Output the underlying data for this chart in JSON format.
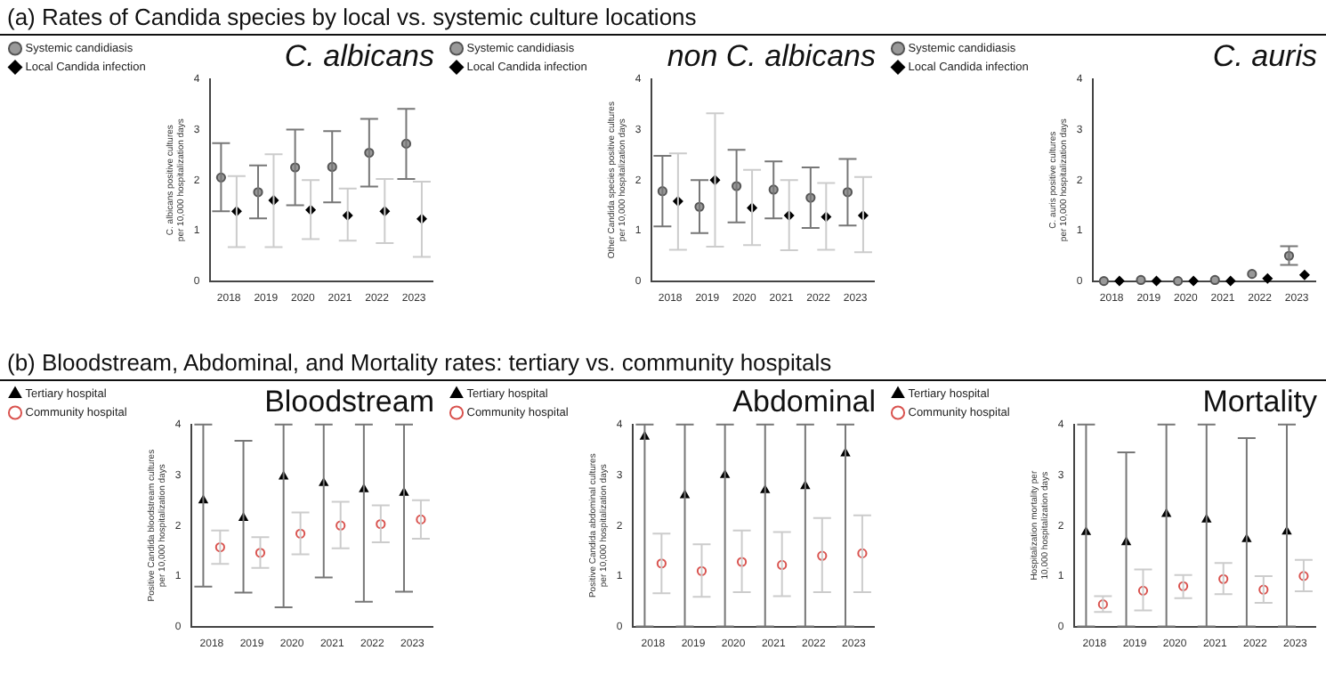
{
  "chart_data": [
    {
      "type": "scatter",
      "title": "C. albicans",
      "ylabel": "C. albicans positive cultures per 10,000 hospitalization days",
      "annotations": [
        "(a) Rates of Candida species by local vs. systemic culture locations"
      ],
      "categories": [
        "2018",
        "2019",
        "2020",
        "2021",
        "2022",
        "2023"
      ],
      "ylim": [
        0,
        4
      ],
      "yticks": [
        0,
        1,
        2,
        3,
        4
      ],
      "legend": "top left",
      "series": [
        {
          "name": "Systemic candidiasis",
          "color": "#999999",
          "marker": "circle",
          "values": [
            2.05,
            1.76,
            2.25,
            2.26,
            2.54,
            2.72
          ],
          "errors": [
            [
              1.38,
              2.73
            ],
            [
              1.24,
              2.29
            ],
            [
              1.5,
              3.0
            ],
            [
              1.56,
              2.97
            ],
            [
              1.87,
              3.21
            ],
            [
              2.02,
              3.41
            ]
          ]
        },
        {
          "name": "Local Candida infection",
          "color": "#000000",
          "marker": "diamond",
          "values": [
            1.38,
            1.6,
            1.41,
            1.3,
            1.38,
            1.23
          ],
          "errors": [
            [
              0.67,
              2.08
            ],
            [
              0.67,
              2.51
            ],
            [
              0.83,
              2.0
            ],
            [
              0.8,
              1.83
            ],
            [
              0.75,
              2.02
            ],
            [
              0.48,
              1.97
            ]
          ]
        }
      ]
    },
    {
      "type": "scatter",
      "title": "non C. albicans",
      "ylabel": "Other Candida species positive cultures per 10,000 hospitalization days",
      "categories": [
        "2018",
        "2019",
        "2020",
        "2021",
        "2022",
        "2023"
      ],
      "ylim": [
        0,
        4
      ],
      "yticks": [
        0,
        1,
        2,
        3,
        4
      ],
      "legend": "top left",
      "series": [
        {
          "name": "Systemic candidiasis",
          "color": "#999999",
          "marker": "circle",
          "values": [
            1.78,
            1.47,
            1.88,
            1.81,
            1.65,
            1.76
          ],
          "errors": [
            [
              1.08,
              2.48
            ],
            [
              0.95,
              2.0
            ],
            [
              1.16,
              2.6
            ],
            [
              1.24,
              2.37
            ],
            [
              1.05,
              2.25
            ],
            [
              1.1,
              2.42
            ]
          ]
        },
        {
          "name": "Local Candida infection",
          "color": "#000000",
          "marker": "diamond",
          "values": [
            1.58,
            2.0,
            1.45,
            1.3,
            1.27,
            1.3
          ],
          "errors": [
            [
              0.62,
              2.53
            ],
            [
              0.68,
              3.32
            ],
            [
              0.71,
              2.2
            ],
            [
              0.61,
              2.0
            ],
            [
              0.62,
              1.94
            ],
            [
              0.57,
              2.06
            ]
          ]
        }
      ]
    },
    {
      "type": "scatter",
      "title": "C. auris",
      "ylabel": "C. auris positive cultures per 10,000 hospitalization days",
      "categories": [
        "2018",
        "2019",
        "2020",
        "2021",
        "2022",
        "2023"
      ],
      "ylim": [
        0,
        4
      ],
      "yticks": [
        0,
        1,
        2,
        3,
        4
      ],
      "legend": "top left",
      "series": [
        {
          "name": "Systemic candidiasis",
          "color": "#999999",
          "marker": "circle",
          "values": [
            0,
            0.02,
            0,
            0.02,
            0.14,
            0.5
          ],
          "errors": [
            null,
            null,
            null,
            null,
            null,
            [
              0.32,
              0.69
            ]
          ]
        },
        {
          "name": "Local Candida infection",
          "color": "#000000",
          "marker": "diamond",
          "values": [
            0,
            0,
            0,
            0,
            0.05,
            0.12
          ]
        }
      ]
    },
    {
      "type": "scatter",
      "title": "Bloodstream",
      "ylabel": "Positive Candida bloodstream cultures per 10,000 hospitalization days",
      "annotations": [
        "(b) Bloodstream, Abdominal, and Mortality rates: tertiary vs. community hospitals"
      ],
      "categories": [
        "2018",
        "2019",
        "2020",
        "2021",
        "2022",
        "2023"
      ],
      "ylim": [
        0,
        4
      ],
      "yticks": [
        0,
        1,
        2,
        3,
        4
      ],
      "legend": "top left",
      "series": [
        {
          "name": "Tertiary hospital",
          "color": "#000000",
          "marker": "triangle",
          "values": [
            2.5,
            2.15,
            2.97,
            2.84,
            2.72,
            2.65
          ],
          "errors": [
            [
              0.79,
              4
            ],
            [
              0.67,
              3.68
            ],
            [
              0.38,
              4
            ],
            [
              0.97,
              4
            ],
            [
              0.49,
              4
            ],
            [
              0.69,
              4
            ]
          ]
        },
        {
          "name": "Community hospital",
          "color": "#d9534f",
          "marker": "circle",
          "values": [
            1.57,
            1.46,
            1.84,
            2.0,
            2.03,
            2.12
          ],
          "errors": [
            [
              1.24,
              1.9
            ],
            [
              1.16,
              1.77
            ],
            [
              1.43,
              2.26
            ],
            [
              1.55,
              2.47
            ],
            [
              1.67,
              2.4
            ],
            [
              1.74,
              2.5
            ]
          ]
        }
      ]
    },
    {
      "type": "scatter",
      "title": "Abdominal",
      "ylabel": "Positive Candida abdominal cultures per 10,000 hospitalization days",
      "categories": [
        "2018",
        "2019",
        "2020",
        "2021",
        "2022",
        "2023"
      ],
      "ylim": [
        0,
        4
      ],
      "yticks": [
        0,
        1,
        2,
        3,
        4
      ],
      "legend": "top left",
      "series": [
        {
          "name": "Tertiary hospital",
          "color": "#000000",
          "marker": "triangle",
          "values": [
            3.76,
            2.6,
            3.0,
            2.7,
            2.78,
            3.43
          ],
          "errors": [
            [
              0,
              4
            ],
            [
              0,
              4
            ],
            [
              0,
              4
            ],
            [
              0,
              4
            ],
            [
              0,
              4
            ],
            [
              0,
              4
            ]
          ]
        },
        {
          "name": "Community hospital",
          "color": "#d9534f",
          "marker": "circle",
          "values": [
            1.25,
            1.1,
            1.28,
            1.22,
            1.4,
            1.45
          ],
          "errors": [
            [
              0.66,
              1.84
            ],
            [
              0.59,
              1.63
            ],
            [
              0.68,
              1.9
            ],
            [
              0.6,
              1.87
            ],
            [
              0.68,
              2.15
            ],
            [
              0.68,
              2.2
            ]
          ]
        }
      ]
    },
    {
      "type": "scatter",
      "title": "Mortality",
      "ylabel": "Hospitalization mortality per 10,000 hospitalization days",
      "categories": [
        "2018",
        "2019",
        "2020",
        "2021",
        "2022",
        "2023"
      ],
      "ylim": [
        0,
        4
      ],
      "yticks": [
        0,
        1,
        2,
        3,
        4
      ],
      "legend": "top left",
      "series": [
        {
          "name": "Tertiary hospital",
          "color": "#000000",
          "marker": "triangle",
          "values": [
            1.87,
            1.67,
            2.23,
            2.12,
            1.73,
            1.88
          ],
          "errors": [
            [
              0,
              4
            ],
            [
              0,
              3.45
            ],
            [
              0,
              4
            ],
            [
              0,
              4
            ],
            [
              0,
              3.73
            ],
            [
              0,
              4
            ]
          ]
        },
        {
          "name": "Community hospital",
          "color": "#d9534f",
          "marker": "circle",
          "values": [
            0.44,
            0.71,
            0.8,
            0.94,
            0.73,
            1.0
          ],
          "errors": [
            [
              0.29,
              0.6
            ],
            [
              0.32,
              1.13
            ],
            [
              0.56,
              1.02
            ],
            [
              0.64,
              1.26
            ],
            [
              0.47,
              1.0
            ],
            [
              0.7,
              1.32
            ]
          ]
        }
      ]
    }
  ]
}
